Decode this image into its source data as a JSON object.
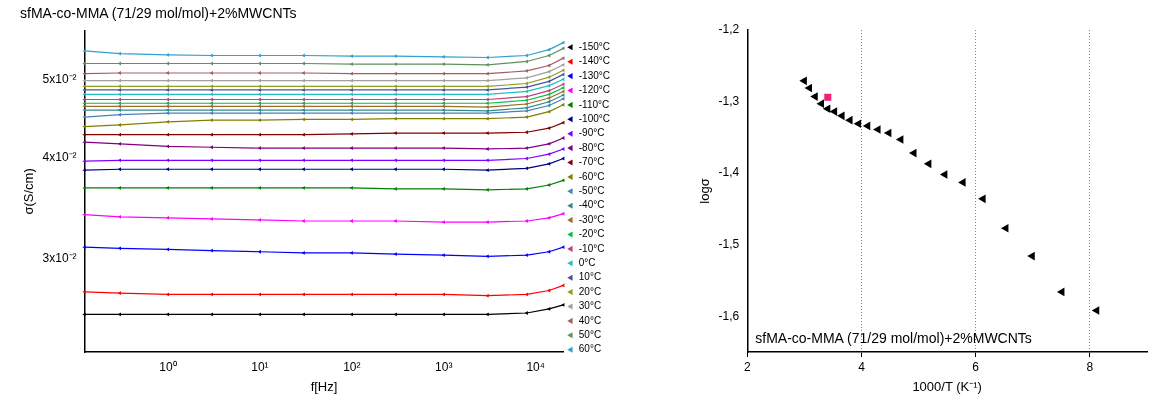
{
  "chart_data": [
    {
      "type": "line",
      "title": "sfMA-co-MMA (71/29 mol/mol)+2%MWCNTs",
      "xlabel": "f[Hz]",
      "ylabel": "σ(S/cm)",
      "log": "xy",
      "grid": false,
      "legend": "right",
      "marker": "triangle",
      "xlim": [
        0.124,
        20000
      ],
      "xticks": [
        {
          "value": 1,
          "label": "10⁰"
        },
        {
          "value": 10,
          "label": "10¹"
        },
        {
          "value": 100,
          "label": "10²"
        },
        {
          "value": 1000,
          "label": "10³"
        },
        {
          "value": 10000,
          "label": "10⁴"
        }
      ],
      "ylim": [
        0.0233,
        0.0574
      ],
      "yticks": [
        {
          "value": 0.03,
          "label": "3x10⁻²"
        },
        {
          "value": 0.04,
          "label": "4x10⁻²"
        },
        {
          "value": 0.05,
          "label": "5x10⁻²"
        }
      ],
      "x": [
        0.124,
        0.3,
        1,
        3,
        10,
        30,
        100,
        300,
        1000,
        3000,
        8000,
        14000,
        20000
      ],
      "series": [
        {
          "name": "-150°C",
          "color": "#000000",
          "values": [
            0.0256,
            0.0256,
            0.0256,
            0.0256,
            0.0256,
            0.0256,
            0.0256,
            0.0256,
            0.0256,
            0.0256,
            0.0257,
            0.026,
            0.0263
          ]
        },
        {
          "name": "-140°C",
          "color": "#ff0000",
          "values": [
            0.0273,
            0.0272,
            0.0271,
            0.0271,
            0.0271,
            0.0271,
            0.0271,
            0.0271,
            0.0271,
            0.027,
            0.0271,
            0.0274,
            0.0278
          ]
        },
        {
          "name": "-130°C",
          "color": "#0000ff",
          "values": [
            0.031,
            0.0309,
            0.0308,
            0.0307,
            0.0306,
            0.0305,
            0.0305,
            0.0304,
            0.0303,
            0.0302,
            0.0303,
            0.0306,
            0.031
          ]
        },
        {
          "name": "-120°C",
          "color": "#ff00ff",
          "values": [
            0.034,
            0.0338,
            0.0337,
            0.0336,
            0.0335,
            0.0334,
            0.0334,
            0.0334,
            0.0333,
            0.0333,
            0.0334,
            0.0337,
            0.0341
          ]
        },
        {
          "name": "-110°C",
          "color": "#008000",
          "values": [
            0.0367,
            0.0367,
            0.0367,
            0.0367,
            0.0367,
            0.0367,
            0.0367,
            0.0366,
            0.0366,
            0.0365,
            0.0366,
            0.037,
            0.0375
          ]
        },
        {
          "name": "-100°C",
          "color": "#000080",
          "values": [
            0.0386,
            0.0387,
            0.0387,
            0.0387,
            0.0387,
            0.0387,
            0.0387,
            0.0387,
            0.0387,
            0.0386,
            0.0388,
            0.0393,
            0.0399
          ]
        },
        {
          "name": "-90°C",
          "color": "#8000ff",
          "values": [
            0.0396,
            0.0397,
            0.0397,
            0.0397,
            0.0397,
            0.0397,
            0.0397,
            0.0397,
            0.0397,
            0.0397,
            0.0399,
            0.0404,
            0.041
          ]
        },
        {
          "name": "-80°C",
          "color": "#800080",
          "values": [
            0.0418,
            0.0416,
            0.0413,
            0.0412,
            0.0411,
            0.0411,
            0.0411,
            0.0411,
            0.0411,
            0.041,
            0.0411,
            0.0416,
            0.0423
          ]
        },
        {
          "name": "-70°C",
          "color": "#800000",
          "values": [
            0.0427,
            0.0427,
            0.0427,
            0.0427,
            0.0427,
            0.0427,
            0.0428,
            0.0429,
            0.0429,
            0.0429,
            0.043,
            0.0435,
            0.0442
          ]
        },
        {
          "name": "-60°C",
          "color": "#808000",
          "values": [
            0.0437,
            0.0439,
            0.0443,
            0.0445,
            0.0445,
            0.0446,
            0.0446,
            0.0447,
            0.0447,
            0.0447,
            0.0449,
            0.0456,
            0.0465
          ]
        },
        {
          "name": "-50°C",
          "color": "#4682b4",
          "values": [
            0.0449,
            0.0452,
            0.0454,
            0.0454,
            0.0454,
            0.0454,
            0.0454,
            0.0454,
            0.0454,
            0.0454,
            0.0457,
            0.0464,
            0.0473
          ]
        },
        {
          "name": "-40°C",
          "color": "#2e8b8b",
          "values": [
            0.0458,
            0.0458,
            0.0458,
            0.0458,
            0.0458,
            0.0458,
            0.0458,
            0.0458,
            0.0458,
            0.0457,
            0.0461,
            0.0469,
            0.0478
          ]
        },
        {
          "name": "-30°C",
          "color": "#a0692d",
          "values": [
            0.0463,
            0.0463,
            0.0463,
            0.0463,
            0.0463,
            0.0463,
            0.0463,
            0.0463,
            0.0463,
            0.0462,
            0.0466,
            0.0474,
            0.0483
          ]
        },
        {
          "name": "-20°C",
          "color": "#00c040",
          "values": [
            0.0467,
            0.0467,
            0.0467,
            0.0467,
            0.0467,
            0.0467,
            0.0467,
            0.0467,
            0.0467,
            0.0467,
            0.0471,
            0.0479,
            0.0488
          ]
        },
        {
          "name": "-10°C",
          "color": "#c0407f",
          "values": [
            0.0472,
            0.0472,
            0.0472,
            0.0472,
            0.0472,
            0.0472,
            0.0472,
            0.0472,
            0.0472,
            0.0472,
            0.0476,
            0.0484,
            0.0493
          ]
        },
        {
          "name": "0°C",
          "color": "#20c0c0",
          "values": [
            0.0479,
            0.0479,
            0.0479,
            0.0479,
            0.0479,
            0.0479,
            0.0479,
            0.0479,
            0.0479,
            0.0479,
            0.0483,
            0.0491,
            0.05
          ]
        },
        {
          "name": "10°C",
          "color": "#5050a0",
          "values": [
            0.0485,
            0.0485,
            0.0485,
            0.0485,
            0.0485,
            0.0485,
            0.0485,
            0.0485,
            0.0485,
            0.0485,
            0.0489,
            0.0497,
            0.0507
          ]
        },
        {
          "name": "20°C",
          "color": "#90a020",
          "values": [
            0.049,
            0.049,
            0.049,
            0.049,
            0.049,
            0.049,
            0.049,
            0.049,
            0.049,
            0.049,
            0.0494,
            0.0503,
            0.0513
          ]
        },
        {
          "name": "30°C",
          "color": "#a0a0a0",
          "values": [
            0.0498,
            0.0498,
            0.0498,
            0.0498,
            0.0498,
            0.0498,
            0.0498,
            0.0498,
            0.0498,
            0.0498,
            0.0502,
            0.0511,
            0.0521
          ]
        },
        {
          "name": "40°C",
          "color": "#a06060",
          "values": [
            0.0508,
            0.0509,
            0.0509,
            0.0509,
            0.0509,
            0.0509,
            0.0508,
            0.0508,
            0.0508,
            0.0508,
            0.0512,
            0.052,
            0.0531
          ]
        },
        {
          "name": "50°C",
          "color": "#609060",
          "values": [
            0.0523,
            0.0523,
            0.0523,
            0.0523,
            0.0523,
            0.0523,
            0.0522,
            0.0522,
            0.0522,
            0.0521,
            0.0526,
            0.0535,
            0.0546
          ]
        },
        {
          "name": "60°C",
          "color": "#30a0d0",
          "values": [
            0.0542,
            0.0538,
            0.0536,
            0.0535,
            0.0535,
            0.0535,
            0.0534,
            0.0534,
            0.0533,
            0.0532,
            0.0535,
            0.0544,
            0.0555
          ]
        }
      ]
    },
    {
      "type": "scatter",
      "xlabel": "1000/T (K⁻¹)",
      "ylabel": "logσ",
      "grid": "x",
      "legend": false,
      "xlim": [
        2,
        9
      ],
      "xticks": [
        2,
        4,
        6,
        8
      ],
      "ylim": [
        -1.65,
        -1.2
      ],
      "yticks": [
        {
          "value": -1.2,
          "label": "-1,2"
        },
        {
          "value": -1.3,
          "label": "-1,3"
        },
        {
          "value": -1.4,
          "label": "-1,4"
        },
        {
          "value": -1.5,
          "label": "-1,5"
        },
        {
          "value": -1.6,
          "label": "-1,6"
        }
      ],
      "annotations": [
        "sfMA-co-MMA (71/29 mol/mol)+2%MWCNTs"
      ],
      "series": [
        {
          "color": "#000000",
          "marker": "triangle",
          "x": [
            3.0,
            3.09,
            3.19,
            3.3,
            3.41,
            3.53,
            3.66,
            3.8,
            3.95,
            4.11,
            4.29,
            4.48,
            4.69,
            4.92,
            5.18,
            5.46,
            5.78,
            6.13,
            6.53,
            6.99,
            7.51,
            8.12
          ],
          "values": [
            -1.271,
            -1.281,
            -1.293,
            -1.303,
            -1.31,
            -1.314,
            -1.32,
            -1.326,
            -1.331,
            -1.334,
            -1.339,
            -1.344,
            -1.353,
            -1.372,
            -1.387,
            -1.402,
            -1.413,
            -1.436,
            -1.477,
            -1.516,
            -1.566,
            -1.592
          ]
        },
        {
          "color": "#f0207f",
          "marker": "square",
          "x": [
            3.41
          ],
          "values": [
            -1.294
          ]
        }
      ]
    }
  ]
}
